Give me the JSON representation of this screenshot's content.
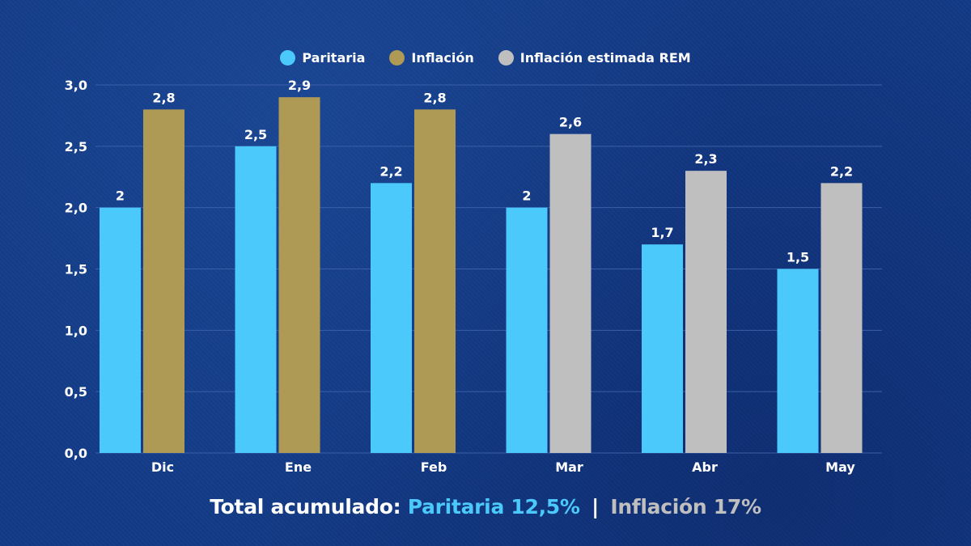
{
  "colors": {
    "paritaria": "#4cc9fb",
    "inflacion": "#ae9955",
    "inflacion_rem": "#bfbfbf",
    "text": "#ffffff",
    "grid": "#3a5fa8"
  },
  "chart_data": {
    "type": "bar",
    "title": "",
    "xlabel": "",
    "ylabel": "",
    "ylim": [
      0,
      3
    ],
    "yticks": [
      "0,0",
      "0,5",
      "1,0",
      "1,5",
      "2,0",
      "2,5",
      "3,0"
    ],
    "grid": true,
    "legend_position": "top-center",
    "categories": [
      "Dic",
      "Ene",
      "Feb",
      "Mar",
      "Abr",
      "May"
    ],
    "series": [
      {
        "name": "Paritaria",
        "values": [
          2,
          2.5,
          2.2,
          2,
          1.7,
          1.5
        ],
        "labels": [
          "2",
          "2,5",
          "2,2",
          "2",
          "1,7",
          "1,5"
        ]
      },
      {
        "name": "Inflación",
        "values": [
          2.8,
          2.9,
          2.8,
          null,
          null,
          null
        ],
        "labels": [
          "2,8",
          "2,9",
          "2,8",
          "",
          "",
          ""
        ]
      },
      {
        "name": "Inflación estimada REM",
        "values": [
          null,
          null,
          null,
          2.6,
          2.3,
          2.2
        ],
        "labels": [
          "",
          "",
          "",
          "2,6",
          "2,3",
          "2,2"
        ]
      }
    ]
  },
  "legend": {
    "items": [
      {
        "label": "Paritaria"
      },
      {
        "label": "Inflación"
      },
      {
        "label": "Inflación estimada REM"
      }
    ]
  },
  "footer": {
    "prefix": "Total acumulado:",
    "paritaria": "Paritaria 12,5%",
    "separator": "|",
    "inflacion": "Inflación 17%"
  }
}
